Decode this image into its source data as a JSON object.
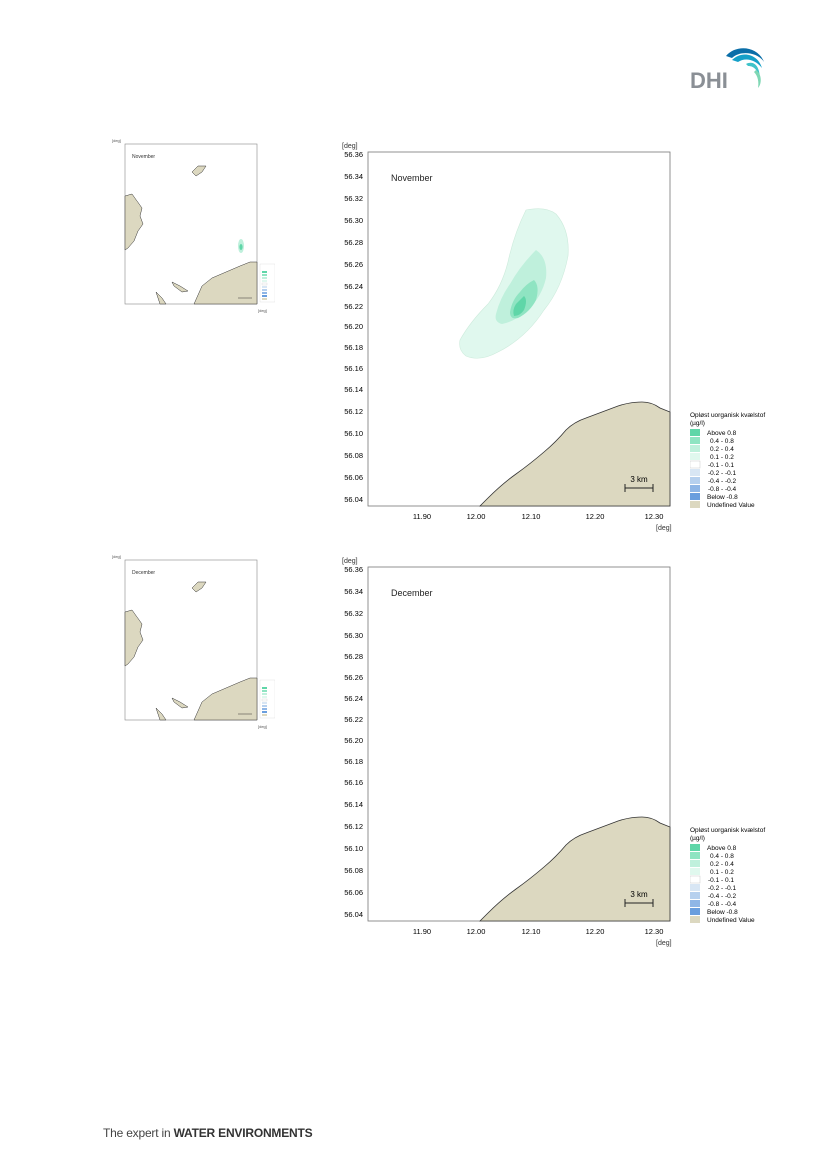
{
  "brand": {
    "logo_text": "DHI",
    "tagline_prefix": "The expert in ",
    "tagline_bold": "WATER ENVIRONMENTS",
    "logo_color": "#8a8f95",
    "wave_colors": [
      "#0a6ea8",
      "#15a0c8",
      "#3fc3c9",
      "#7fd7b4"
    ]
  },
  "colors": {
    "land": "#dcd8c0",
    "coast": "#333333",
    "c_above_0_8": "#5fd6a8",
    "c_0_4_0_8": "#8fe4c2",
    "c_0_2_0_4": "#bff0dc",
    "c_0_1_0_2": "#e0f8ee",
    "c_m0_1_0_1": "#ffffff",
    "c_m0_2_m0_1": "#d8e6f4",
    "c_m0_4_m0_2": "#b6d0ee",
    "c_m0_8_m0_4": "#8fb6e6",
    "c_below_m0_8": "#6a9ede"
  },
  "panels": [
    {
      "id": "november",
      "month": "November",
      "unit_label": "[deg]",
      "x_unit_label": "[deg]",
      "y_ticks": [
        "56.36",
        "56.34",
        "56.32",
        "56.30",
        "56.28",
        "56.26",
        "56.24",
        "56.22",
        "56.20",
        "56.18",
        "56.16",
        "56.14",
        "56.12",
        "56.10",
        "56.08",
        "56.06",
        "56.04"
      ],
      "x_ticks": [
        "11.90",
        "12.00",
        "12.10",
        "12.20",
        "12.30"
      ],
      "scale_label": "3 km",
      "has_plume": true
    },
    {
      "id": "december",
      "month": "December",
      "unit_label": "[deg]",
      "x_unit_label": "[deg]",
      "y_ticks": [
        "56.36",
        "56.34",
        "56.32",
        "56.30",
        "56.28",
        "56.26",
        "56.24",
        "56.22",
        "56.20",
        "56.18",
        "56.16",
        "56.14",
        "56.12",
        "56.10",
        "56.08",
        "56.06",
        "56.04"
      ],
      "x_ticks": [
        "11.90",
        "12.00",
        "12.10",
        "12.20",
        "12.30"
      ],
      "scale_label": "3 km",
      "has_plume": false
    }
  ],
  "legend": {
    "title_line1": "Opløst uorganisk kvælstof",
    "title_line2": "(µg/l)",
    "items": [
      {
        "label": "Above  0.8",
        "color": "#5fd6a8"
      },
      {
        "label": "0.4 -  0.8",
        "color": "#8fe4c2"
      },
      {
        "label": "0.2 -  0.4",
        "color": "#bff0dc"
      },
      {
        "label": "0.1 -  0.2",
        "color": "#e0f8ee"
      },
      {
        "label": "-0.1 -  0.1",
        "color": "#ffffff"
      },
      {
        "label": "-0.2 - -0.1",
        "color": "#d8e6f4"
      },
      {
        "label": "-0.4 - -0.2",
        "color": "#b6d0ee"
      },
      {
        "label": "-0.8 - -0.4",
        "color": "#8fb6e6"
      },
      {
        "label": "Below -0.8",
        "color": "#6a9ede"
      },
      {
        "label": "Undefined Value",
        "color": "#dcd8c0"
      }
    ]
  }
}
